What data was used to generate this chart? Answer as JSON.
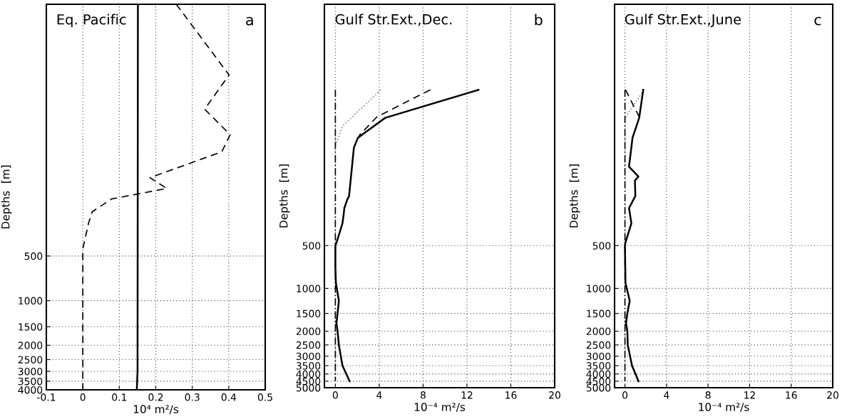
{
  "chart_data": [
    {
      "type": "line",
      "title": "Eq. Pacific",
      "annotations": [
        "a"
      ],
      "xlabel": "10⁴ m²/s",
      "ylabel": "Depths  [m]",
      "log": "y",
      "grid": true,
      "xlim": [
        -0.1,
        0.5
      ],
      "xticks": [
        -0.1,
        0,
        0.1,
        0.2,
        0.3,
        0.4,
        0.5
      ],
      "ylim": [
        4000,
        10
      ],
      "yticks": [
        500,
        1000,
        1500,
        2000,
        2500,
        3000,
        3500,
        4000
      ],
      "series": [
        {
          "color": "#000000",
          "line_style": "dashed",
          "x": [
            0.256,
            0.401,
            0.334,
            0.404,
            0.381,
            0.184,
            0.23,
            0.079,
            0.026,
            0.016,
            0,
            0,
            0,
            0
          ],
          "values": [
            10,
            30,
            51,
            76,
            99,
            148,
            175,
            206,
            251,
            298,
            447,
            500,
            1000,
            4000
          ]
        },
        {
          "color": "#000000",
          "line_style": "solid",
          "x": [
            0.151,
            0.15,
            0.148
          ],
          "values": [
            10,
            3000,
            4000
          ]
        }
      ]
    },
    {
      "type": "line",
      "title": "Gulf Str.Ext.,Dec.",
      "annotations": [
        "b"
      ],
      "xlabel": "10⁻⁴ m²/s",
      "ylabel": "Depths  [m]",
      "log": "y",
      "grid": true,
      "xlim": [
        -1,
        20
      ],
      "xticks": [
        0,
        4,
        8,
        12,
        16,
        20
      ],
      "ylim": [
        5000,
        10
      ],
      "yticks": [
        500,
        1000,
        1500,
        2000,
        2500,
        3000,
        3500,
        4000,
        4500,
        5000
      ],
      "series": [
        {
          "color": "#888888",
          "line_style": "dotted",
          "x": [
            4.11,
            3.46,
            0.65,
            0.11,
            0
          ],
          "values": [
            40,
            45,
            72,
            94,
            100
          ]
        },
        {
          "color": "#000000",
          "line_style": "dashdot",
          "x": [
            0,
            0
          ],
          "values": [
            40,
            4500
          ]
        },
        {
          "color": "#000000",
          "line_style": "dashed",
          "x": [
            8.66,
            3.79,
            2.16
          ],
          "values": [
            40,
            62,
            84
          ]
        },
        {
          "color": "#000000",
          "line_style": "solid",
          "x": [
            13.05,
            4.55,
            2.06,
            1.69,
            1.25,
            1.08,
            0.82,
            0.76,
            0.65,
            0.11,
            0,
            0,
            0.05,
            0.32,
            0.2,
            0.1,
            0.2,
            0.32,
            0.65,
            1.3
          ],
          "values": [
            40,
            63,
            87,
            102,
            224,
            238,
            272,
            300,
            348,
            475,
            500,
            700,
            916,
            1222,
            1500,
            1757,
            2000,
            2500,
            3500,
            4500
          ]
        }
      ]
    },
    {
      "type": "line",
      "title": "Gulf Str.Ext.,June",
      "annotations": [
        "c"
      ],
      "xlabel": "10⁻⁴ m²/s",
      "ylabel": "Depths  [m]",
      "log": "y",
      "grid": true,
      "xlim": [
        -1,
        20
      ],
      "xticks": [
        0,
        4,
        8,
        12,
        16,
        20
      ],
      "ylim": [
        5000,
        10
      ],
      "yticks": [
        500,
        1000,
        1500,
        2000,
        2500,
        3000,
        3500,
        4000,
        4500,
        5000
      ],
      "series": [
        {
          "color": "#888888",
          "line_style": "dotted",
          "x": [
            1.64,
            0.27,
            0
          ],
          "values": [
            42,
            59,
            65
          ]
        },
        {
          "color": "#000000",
          "line_style": "dashdot",
          "x": [
            0,
            0
          ],
          "values": [
            40,
            4500
          ]
        },
        {
          "color": "#000000",
          "line_style": "dashed",
          "x": [
            0.05,
            1.37
          ],
          "values": [
            40,
            62
          ]
        },
        {
          "color": "#000000",
          "line_style": "solid",
          "x": [
            1.76,
            1.37,
            0.73,
            0.39,
            1.3,
            0.96,
            1.0,
            0.39,
            0.62,
            0.05,
            0,
            0.05,
            0.46,
            0.23,
            0.1,
            0.23,
            0.27,
            0.68,
            1.3
          ],
          "values": [
            40,
            63,
            87,
            139,
            163,
            174,
            224,
            272,
            348,
            475,
            500,
            916,
            1222,
            1500,
            1757,
            2000,
            2500,
            3500,
            4500
          ]
        }
      ]
    }
  ]
}
